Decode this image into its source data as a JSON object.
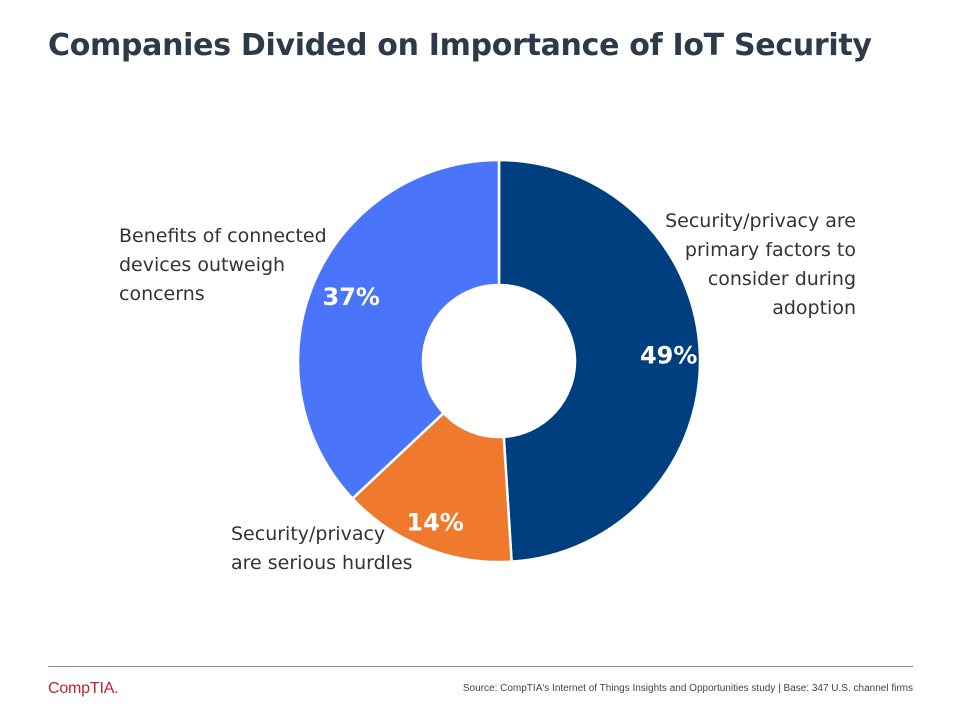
{
  "title": "Companies Divided on Importance of IoT Security",
  "chart_data": {
    "type": "pie",
    "variant": "donut",
    "slices": [
      {
        "label": "Security/privacy are primary factors to consider during adoption",
        "label_lines": [
          "Security/privacy are",
          "primary factors to",
          "consider during",
          "adoption"
        ],
        "value": 49,
        "value_label": "49%",
        "color": "#003f7f"
      },
      {
        "label": "Security/privacy are serious hurdles",
        "label_lines": [
          "Security/privacy",
          "are serious hurdles"
        ],
        "value": 14,
        "value_label": "14%",
        "color": "#ef7a2e"
      },
      {
        "label": "Benefits of connected devices outweigh concerns",
        "label_lines": [
          "Benefits of connected",
          "devices outweigh",
          "concerns"
        ],
        "value": 37,
        "value_label": "37%",
        "color": "#4a74fa"
      }
    ]
  },
  "footer": {
    "logo": "CompTIA.",
    "source": "Source: CompTIA's Internet of Things Insights and Opportunities study | Base: 347 U.S. channel firms"
  },
  "colors": {
    "title": "#2d3a4a",
    "logo": "#c8202f"
  }
}
